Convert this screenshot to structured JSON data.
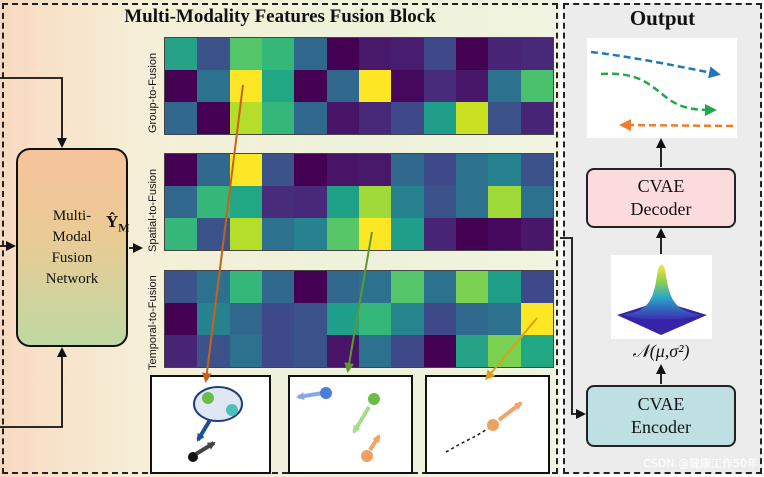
{
  "titles": {
    "fusion_block": "Multi-Modality Features Fusion Block",
    "output": "Output"
  },
  "fusion_network": {
    "lines": [
      "Multi-",
      "Modal",
      "Fusion",
      "Network"
    ]
  },
  "output_symbol": {
    "base": "Ŷ",
    "subscript": "M"
  },
  "heatmap_labels": [
    "Group-to-Fusion",
    "Spatial-to-Fusion",
    "Temporal-to-Fusion"
  ],
  "heatmaps": [
    [
      [
        "#26a386",
        "#3b528b",
        "#54c568",
        "#35b779",
        "#31688e",
        "#440154",
        "#48186a",
        "#481d6f",
        "#3e4989",
        "#440154",
        "#482475",
        "#482878"
      ],
      [
        "#440154",
        "#2c728e",
        "#fde725",
        "#22a785",
        "#440154",
        "#31688e",
        "#fde725",
        "#46085c",
        "#472c7a",
        "#481769",
        "#2c728e",
        "#4ac16d"
      ],
      [
        "#31688e",
        "#440154",
        "#b5de2b",
        "#35b779",
        "#31688e",
        "#481467",
        "#482878",
        "#3e4989",
        "#1f9e89",
        "#c8e020",
        "#3b528b",
        "#482475"
      ]
    ],
    [
      [
        "#440154",
        "#31688e",
        "#fde725",
        "#3b528b",
        "#440154",
        "#481467",
        "#48186a",
        "#31688e",
        "#3e4989",
        "#2c728e",
        "#26828e",
        "#3b528b"
      ],
      [
        "#31688e",
        "#35b779",
        "#22a785",
        "#472c7a",
        "#482878",
        "#1fa188",
        "#9fda3a",
        "#26828e",
        "#3b528b",
        "#2c728e",
        "#a0da39",
        "#2c728e"
      ],
      [
        "#35b779",
        "#3b528b",
        "#b5de2b",
        "#2c728e",
        "#26828e",
        "#56c667",
        "#fde725",
        "#1f9e89",
        "#482475",
        "#440154",
        "#46085c",
        "#481769"
      ]
    ],
    [
      [
        "#3b528b",
        "#2c728e",
        "#35b779",
        "#31688e",
        "#440154",
        "#31688e",
        "#2c728e",
        "#54c568",
        "#2c728e",
        "#7ad151",
        "#1f9e89",
        "#3e4989"
      ],
      [
        "#440154",
        "#26828e",
        "#31688e",
        "#3e4989",
        "#3b528b",
        "#1f9e89",
        "#35b779",
        "#25848e",
        "#3e4989",
        "#31688e",
        "#2c728e",
        "#fde725"
      ],
      [
        "#482475",
        "#3b528b",
        "#2c728e",
        "#3e4989",
        "#3b528b",
        "#481467",
        "#2c728e",
        "#3e4989",
        "#440154",
        "#26a386",
        "#7ad151",
        "#22a785"
      ]
    ]
  ],
  "cvae": {
    "decoder": [
      "CVAE",
      "Decoder"
    ],
    "encoder": [
      "CVAE",
      "Encoder"
    ]
  },
  "distribution_label": "𝒩(μ,σ²)",
  "colors": {
    "orange_arrow": "#c8621a",
    "green_arrow": "#5d9a2e",
    "gold_arrow": "#d6a21a",
    "traj_blue": "#1f77b4",
    "traj_green": "#22a84a",
    "traj_orange": "#f07d2a"
  },
  "watermark": "CSDN @健康工作50年"
}
